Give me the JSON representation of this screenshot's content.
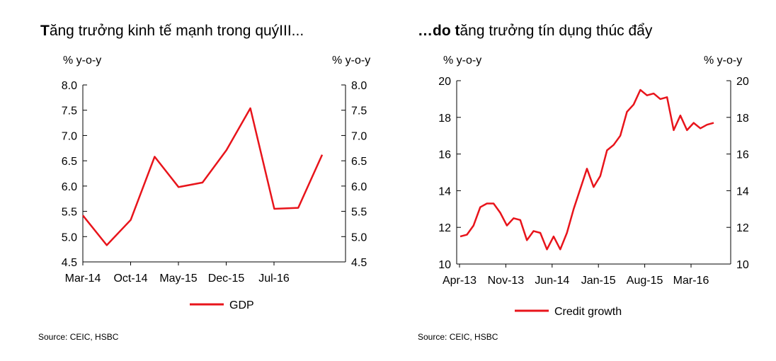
{
  "colors": {
    "series": "#e8141b",
    "axis": "#000000"
  },
  "left": {
    "title_lead": "T",
    "title_rest": "ăng trưởng kinh tế mạnh trong quýIII...",
    "unit_left": "% y-o-y",
    "unit_right": "% y-o-y",
    "source": "Source: CEIC, HSBC"
  },
  "right": {
    "title_lead": "…do t",
    "title_rest": "ăng trưởng tín dụng thúc đẩy",
    "unit_left": "% y-o-y",
    "unit_right": "% y-o-y",
    "source": "Source: CEIC, HSBC"
  },
  "chart_data": [
    {
      "type": "line",
      "x_ticks": [
        "Mar-14",
        "Oct-14",
        "May-15",
        "Dec-15",
        "Jul-16"
      ],
      "ylim": [
        4.5,
        8.0
      ],
      "y_ticks": [
        "8.0",
        "7.5",
        "7.0",
        "6.5",
        "6.0",
        "5.5",
        "5.0",
        "4.5"
      ],
      "grid": false,
      "legend_position": "bottom",
      "series": [
        {
          "name": "GDP",
          "x": [
            "Q1-14",
            "Q2-14",
            "Q3-14",
            "Q4-14",
            "Q1-15",
            "Q2-15",
            "Q3-15",
            "Q4-15",
            "Q1-16",
            "Q2-16",
            "Q3-16"
          ],
          "values": [
            5.42,
            4.83,
            5.33,
            6.58,
            5.98,
            6.07,
            6.71,
            7.54,
            5.55,
            5.57,
            6.62
          ]
        }
      ]
    },
    {
      "type": "line",
      "x_ticks": [
        "Apr-13",
        "Nov-13",
        "Jun-14",
        "Jan-15",
        "Aug-15",
        "Mar-16"
      ],
      "ylim": [
        10,
        20
      ],
      "y_ticks": [
        "20",
        "18",
        "16",
        "14",
        "12",
        "10"
      ],
      "grid": false,
      "legend_position": "bottom",
      "series": [
        {
          "name": "Credit growth",
          "x_start": "Apr-13",
          "x_step": "month",
          "values": [
            11.5,
            11.6,
            12.1,
            13.1,
            13.3,
            13.3,
            12.8,
            12.1,
            12.5,
            12.4,
            11.3,
            11.8,
            11.7,
            10.8,
            11.5,
            10.8,
            11.7,
            13.0,
            14.1,
            15.2,
            14.2,
            14.8,
            16.2,
            16.5,
            17.0,
            18.3,
            18.7,
            19.5,
            19.2,
            19.3,
            19.0,
            19.1,
            17.3,
            18.1,
            17.3,
            17.7,
            17.4,
            17.6,
            17.7
          ]
        }
      ]
    }
  ]
}
